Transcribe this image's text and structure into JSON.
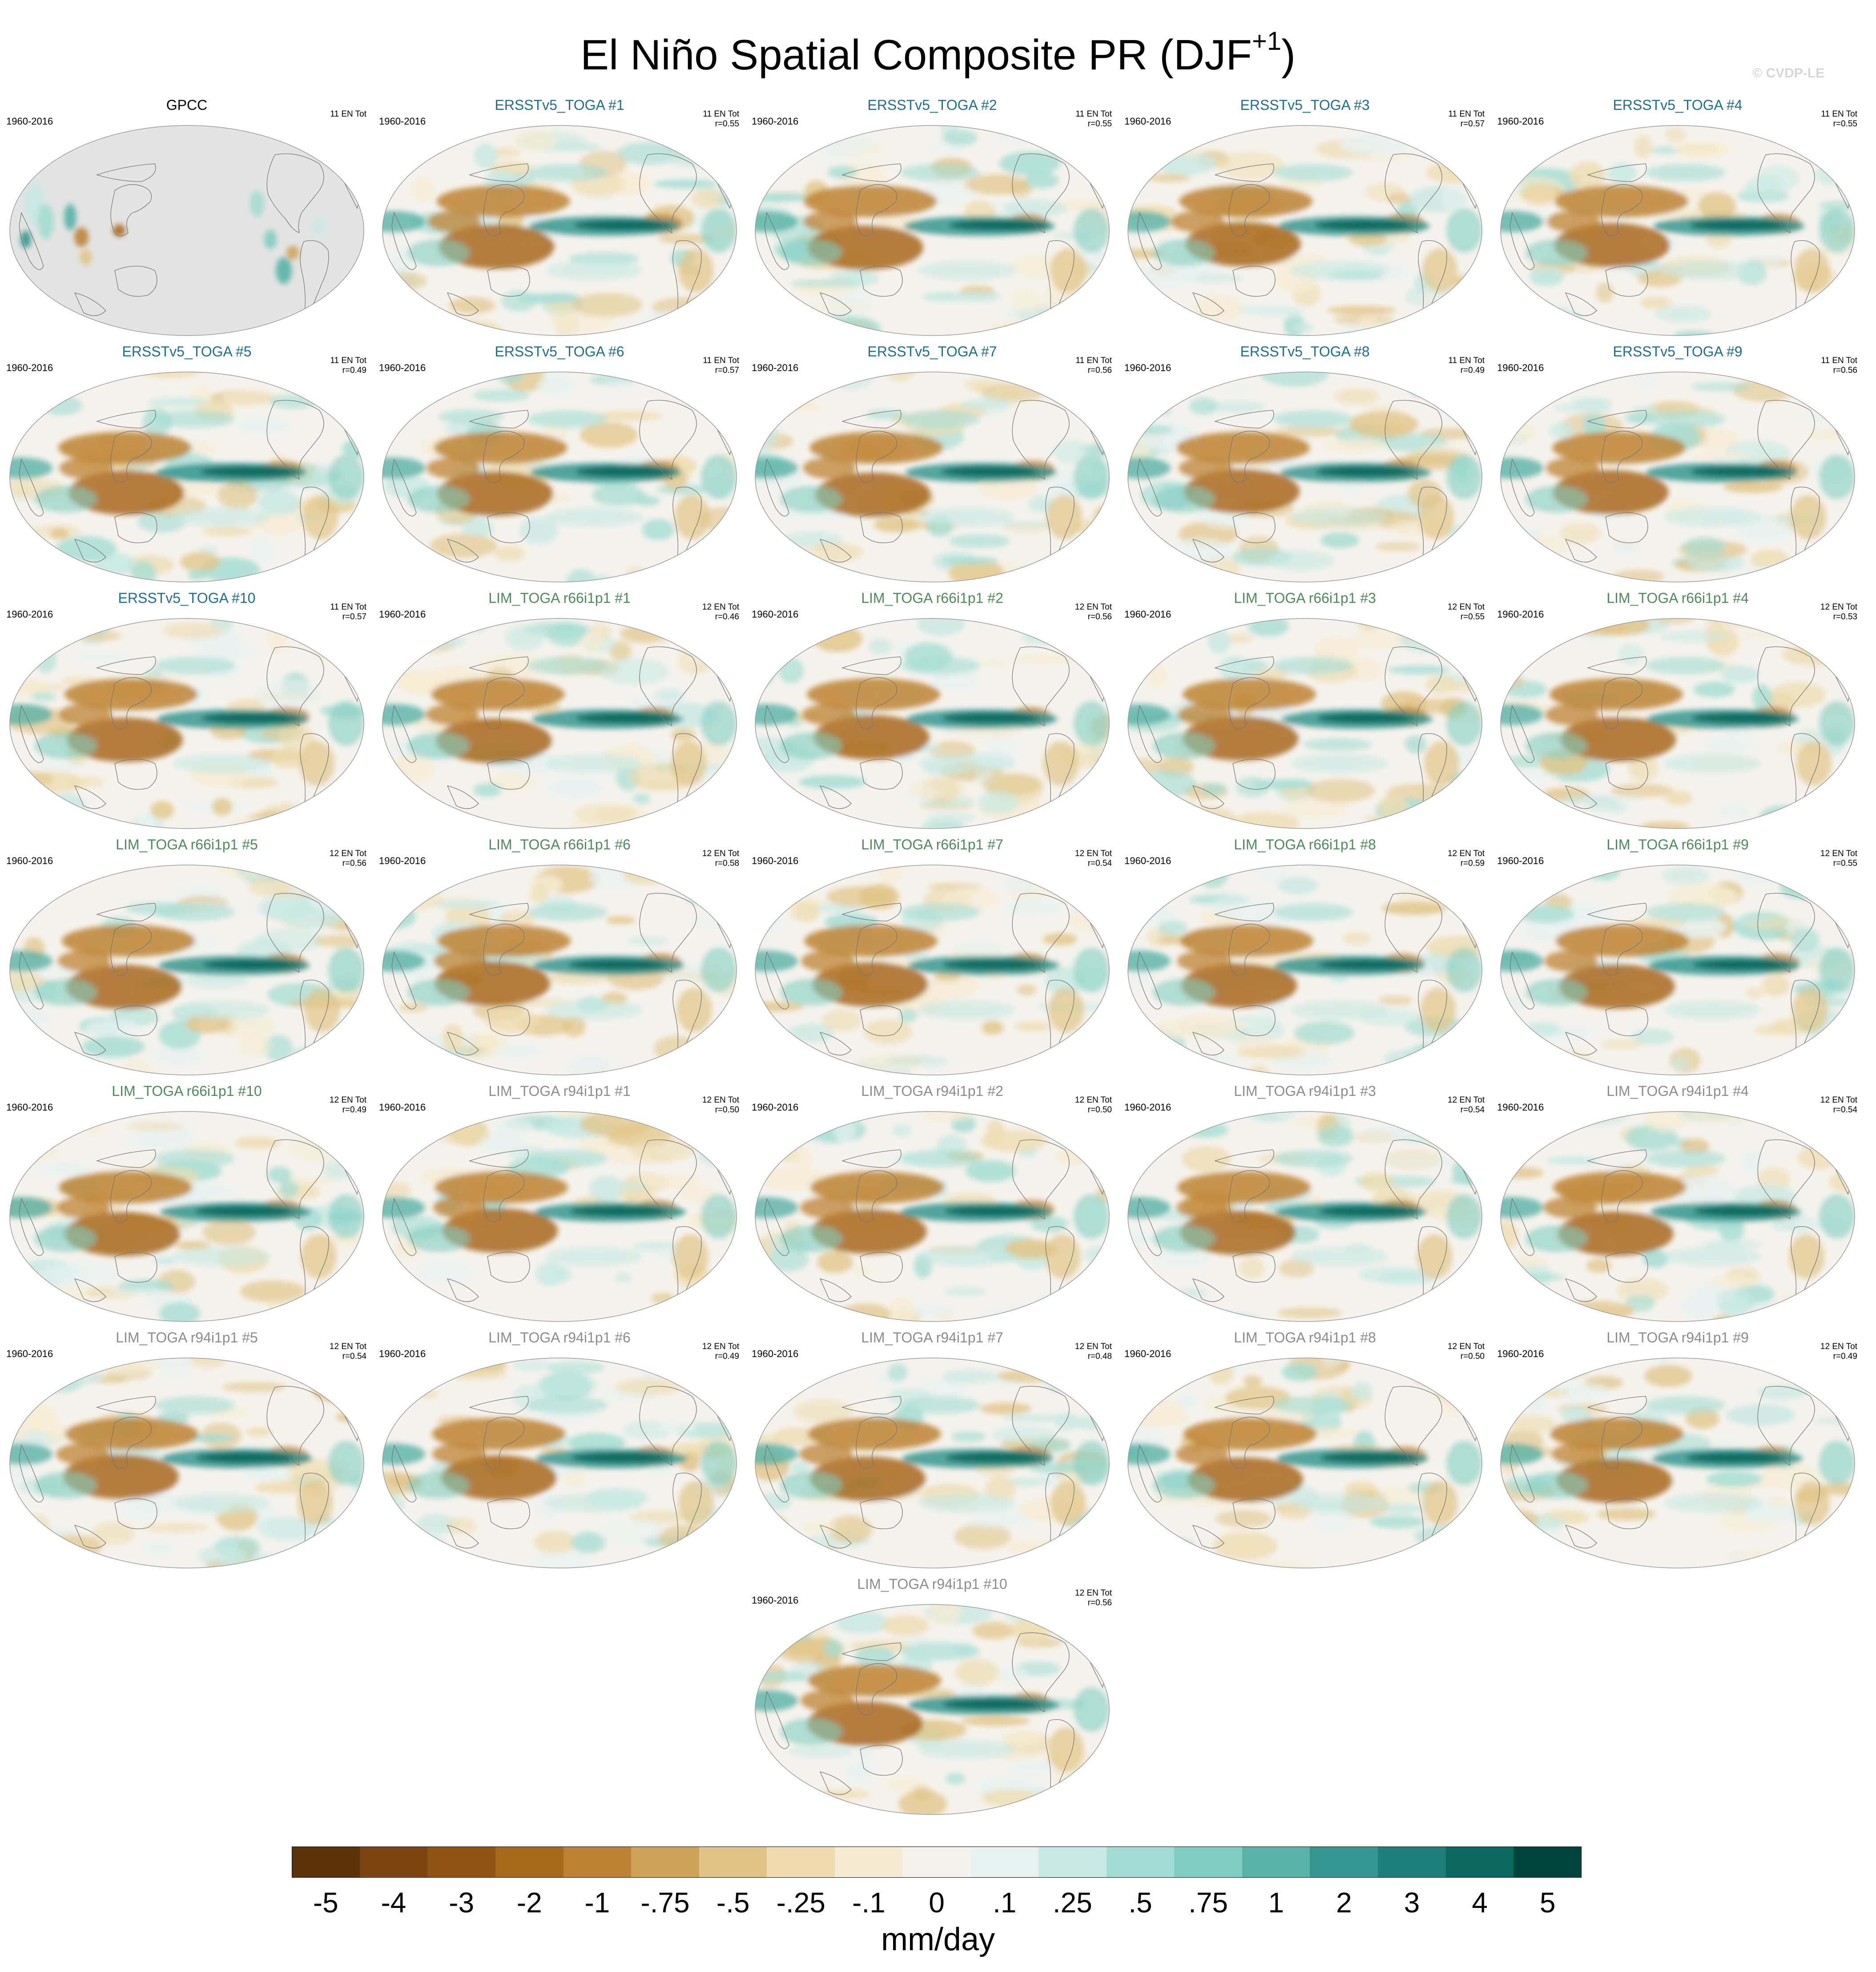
{
  "figure": {
    "title": "El Niño Spatial Composite PR (DJF",
    "title_superscript": "+1",
    "title_close": ")",
    "credit": "© CVDP-LE"
  },
  "colors": {
    "ersst_title": "#1f6e8c",
    "lim_r66_title": "#4f8a5b",
    "lim_r94_title": "#8c8c8c",
    "obs_title": "#000000",
    "land_mask": "#e4e4e4"
  },
  "panels": [
    {
      "title": "GPCC",
      "period": "1960-2016",
      "events": "11 EN Tot",
      "r": "",
      "group": "obs"
    },
    {
      "title": "ERSSTv5_TOGA #1",
      "period": "1960-2016",
      "events": "11 EN Tot",
      "r": "r=0.55",
      "group": "ersst"
    },
    {
      "title": "ERSSTv5_TOGA #2",
      "period": "1960-2016",
      "events": "11 EN Tot",
      "r": "r=0.55",
      "group": "ersst"
    },
    {
      "title": "ERSSTv5_TOGA #3",
      "period": "1960-2016",
      "events": "11 EN Tot",
      "r": "r=0.57",
      "group": "ersst"
    },
    {
      "title": "ERSSTv5_TOGA #4",
      "period": "1960-2016",
      "events": "11 EN Tot",
      "r": "r=0.55",
      "group": "ersst"
    },
    {
      "title": "ERSSTv5_TOGA #5",
      "period": "1960-2016",
      "events": "11 EN Tot",
      "r": "r=0.49",
      "group": "ersst"
    },
    {
      "title": "ERSSTv5_TOGA #6",
      "period": "1960-2016",
      "events": "11 EN Tot",
      "r": "r=0.57",
      "group": "ersst"
    },
    {
      "title": "ERSSTv5_TOGA #7",
      "period": "1960-2016",
      "events": "11 EN Tot",
      "r": "r=0.56",
      "group": "ersst"
    },
    {
      "title": "ERSSTv5_TOGA #8",
      "period": "1960-2016",
      "events": "11 EN Tot",
      "r": "r=0.49",
      "group": "ersst"
    },
    {
      "title": "ERSSTv5_TOGA #9",
      "period": "1960-2016",
      "events": "11 EN Tot",
      "r": "r=0.56",
      "group": "ersst"
    },
    {
      "title": "ERSSTv5_TOGA #10",
      "period": "1960-2016",
      "events": "11 EN Tot",
      "r": "r=0.57",
      "group": "ersst"
    },
    {
      "title": "LIM_TOGA r66i1p1 #1",
      "period": "1960-2016",
      "events": "12 EN Tot",
      "r": "r=0.46",
      "group": "r66"
    },
    {
      "title": "LIM_TOGA r66i1p1 #2",
      "period": "1960-2016",
      "events": "12 EN Tot",
      "r": "r=0.56",
      "group": "r66"
    },
    {
      "title": "LIM_TOGA r66i1p1 #3",
      "period": "1960-2016",
      "events": "12 EN Tot",
      "r": "r=0.55",
      "group": "r66"
    },
    {
      "title": "LIM_TOGA r66i1p1 #4",
      "period": "1960-2016",
      "events": "12 EN Tot",
      "r": "r=0.53",
      "group": "r66"
    },
    {
      "title": "LIM_TOGA r66i1p1 #5",
      "period": "1960-2016",
      "events": "12 EN Tot",
      "r": "r=0.56",
      "group": "r66"
    },
    {
      "title": "LIM_TOGA r66i1p1 #6",
      "period": "1960-2016",
      "events": "12 EN Tot",
      "r": "r=0.58",
      "group": "r66"
    },
    {
      "title": "LIM_TOGA r66i1p1 #7",
      "period": "1960-2016",
      "events": "12 EN Tot",
      "r": "r=0.54",
      "group": "r66"
    },
    {
      "title": "LIM_TOGA r66i1p1 #8",
      "period": "1960-2016",
      "events": "12 EN Tot",
      "r": "r=0.59",
      "group": "r66"
    },
    {
      "title": "LIM_TOGA r66i1p1 #9",
      "period": "1960-2016",
      "events": "12 EN Tot",
      "r": "r=0.55",
      "group": "r66"
    },
    {
      "title": "LIM_TOGA r66i1p1 #10",
      "period": "1960-2016",
      "events": "12 EN Tot",
      "r": "r=0.49",
      "group": "r66"
    },
    {
      "title": "LIM_TOGA r94i1p1 #1",
      "period": "1960-2016",
      "events": "12 EN Tot",
      "r": "r=0.50",
      "group": "r94"
    },
    {
      "title": "LIM_TOGA r94i1p1 #2",
      "period": "1960-2016",
      "events": "12 EN Tot",
      "r": "r=0.50",
      "group": "r94"
    },
    {
      "title": "LIM_TOGA r94i1p1 #3",
      "period": "1960-2016",
      "events": "12 EN Tot",
      "r": "r=0.54",
      "group": "r94"
    },
    {
      "title": "LIM_TOGA r94i1p1 #4",
      "period": "1960-2016",
      "events": "12 EN Tot",
      "r": "r=0.54",
      "group": "r94"
    },
    {
      "title": "LIM_TOGA r94i1p1 #5",
      "period": "1960-2016",
      "events": "12 EN Tot",
      "r": "r=0.54",
      "group": "r94"
    },
    {
      "title": "LIM_TOGA r94i1p1 #6",
      "period": "1960-2016",
      "events": "12 EN Tot",
      "r": "r=0.49",
      "group": "r94"
    },
    {
      "title": "LIM_TOGA r94i1p1 #7",
      "period": "1960-2016",
      "events": "12 EN Tot",
      "r": "r=0.48",
      "group": "r94"
    },
    {
      "title": "LIM_TOGA r94i1p1 #8",
      "period": "1960-2016",
      "events": "12 EN Tot",
      "r": "r=0.50",
      "group": "r94"
    },
    {
      "title": "LIM_TOGA r94i1p1 #9",
      "period": "1960-2016",
      "events": "12 EN Tot",
      "r": "r=0.49",
      "group": "r94"
    },
    {
      "title": "LIM_TOGA r94i1p1 #10",
      "period": "1960-2016",
      "events": "12 EN Tot",
      "r": "r=0.56",
      "group": "r94"
    }
  ],
  "colorbar": {
    "labels": [
      "-5",
      "-4",
      "-3",
      "-2",
      "-1",
      "-.75",
      "-.5",
      "-.25",
      "-.1",
      "0",
      ".1",
      ".25",
      ".5",
      ".75",
      "1",
      "2",
      "3",
      "4",
      "5"
    ],
    "colors": [
      "#5a3207",
      "#7a4510",
      "#8f5413",
      "#a8691d",
      "#bd8233",
      "#cfa25a",
      "#e1c487",
      "#eedcb0",
      "#f5ebd2",
      "#f6f3ee",
      "#e6f1f0",
      "#c7e8e3",
      "#a3dcd3",
      "#80cdc1",
      "#58b2a6",
      "#35978f",
      "#1d7f77",
      "#0b6860",
      "#01463c"
    ],
    "units": "mm/day"
  }
}
